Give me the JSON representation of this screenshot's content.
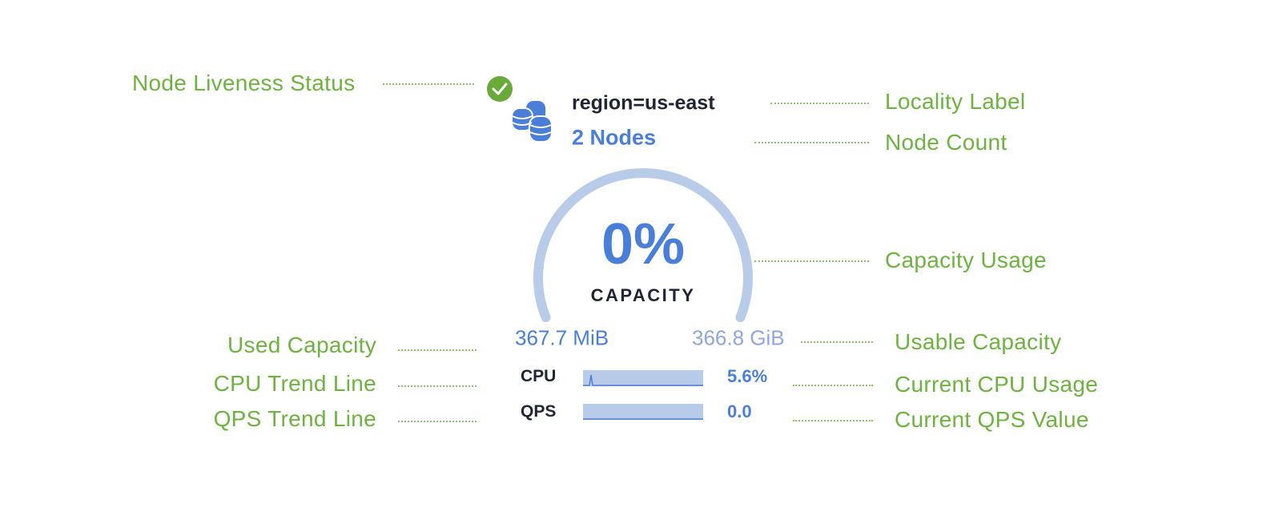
{
  "widget": {
    "locality": "region=us-east",
    "node_count": "2 Nodes",
    "liveness_status": "live",
    "capacity_percent": "0%",
    "capacity_label": "CAPACITY",
    "capacity_fraction": 0,
    "used_capacity": "367.7 MiB",
    "usable_capacity": "366.8 GiB",
    "cpu_label": "CPU",
    "cpu_value": "5.6%",
    "qps_label": "QPS",
    "qps_value": "0.0",
    "icons": {
      "status": "check-circle-icon",
      "nodes": "database-icon"
    },
    "colors": {
      "accent": "#4a7fd9",
      "track": "#b8cbe8",
      "live": "#6aaa3a",
      "text": "#1f2535"
    }
  },
  "annotations": {
    "node_liveness_status": "Node Liveness Status",
    "locality_label": "Locality Label",
    "node_count": "Node Count",
    "capacity_usage": "Capacity Usage",
    "used_capacity": "Used Capacity",
    "usable_capacity": "Usable Capacity",
    "cpu_trend_line": "CPU Trend Line",
    "current_cpu_usage": "Current CPU Usage",
    "qps_trend_line": "QPS Trend Line",
    "current_qps_value": "Current QPS Value",
    "color": "#6db33f"
  }
}
